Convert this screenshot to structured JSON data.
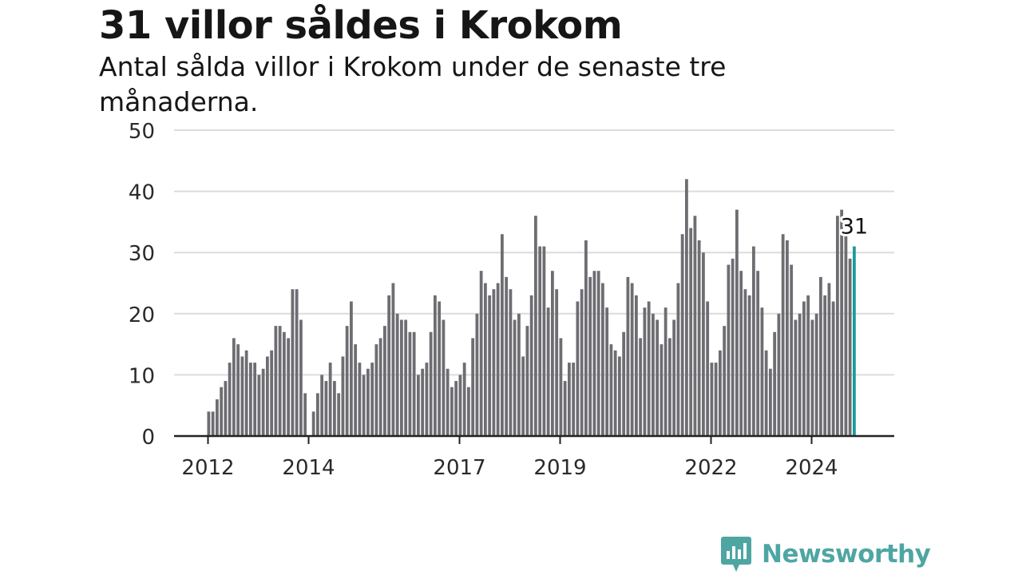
{
  "header": {
    "title": "31 villor såldes i Krokom",
    "subtitle": "Antal sålda villor i Krokom under de senaste tre månaderna."
  },
  "brand": {
    "name": "Newsworthy",
    "color": "#4ea6a3",
    "icon": "newsworthy-logo-icon"
  },
  "chart_data": {
    "type": "bar",
    "ylim": [
      0,
      50
    ],
    "yticks": [
      0,
      10,
      20,
      30,
      40,
      50
    ],
    "xlabels": [
      "2012",
      "2014",
      "2017",
      "2019",
      "2022",
      "2024"
    ],
    "grid": true,
    "bar_color": "#6d6d72",
    "highlight_color": "#1e9a9a",
    "highlight_label": "31",
    "values": [
      4,
      4,
      6,
      8,
      9,
      12,
      16,
      15,
      13,
      14,
      12,
      12,
      10,
      11,
      13,
      14,
      18,
      18,
      17,
      16,
      24,
      24,
      19,
      7,
      0,
      4,
      7,
      10,
      9,
      12,
      9,
      7,
      13,
      18,
      22,
      15,
      12,
      10,
      11,
      12,
      15,
      16,
      18,
      23,
      25,
      20,
      19,
      19,
      17,
      17,
      10,
      11,
      12,
      17,
      23,
      22,
      19,
      11,
      8,
      9,
      10,
      12,
      8,
      16,
      20,
      27,
      25,
      23,
      24,
      25,
      33,
      26,
      24,
      19,
      20,
      13,
      18,
      23,
      36,
      31,
      31,
      21,
      27,
      24,
      16,
      9,
      12,
      12,
      22,
      24,
      32,
      26,
      27,
      27,
      25,
      21,
      15,
      14,
      13,
      17,
      26,
      25,
      23,
      16,
      21,
      22,
      20,
      19,
      15,
      21,
      16,
      19,
      25,
      33,
      42,
      34,
      36,
      32,
      30,
      22,
      12,
      12,
      14,
      18,
      28,
      29,
      37,
      27,
      24,
      23,
      31,
      27,
      21,
      14,
      11,
      17,
      20,
      33,
      32,
      28,
      19,
      20,
      22,
      23,
      19,
      20,
      26,
      23,
      25,
      22,
      36,
      37,
      33,
      29,
      31
    ]
  }
}
